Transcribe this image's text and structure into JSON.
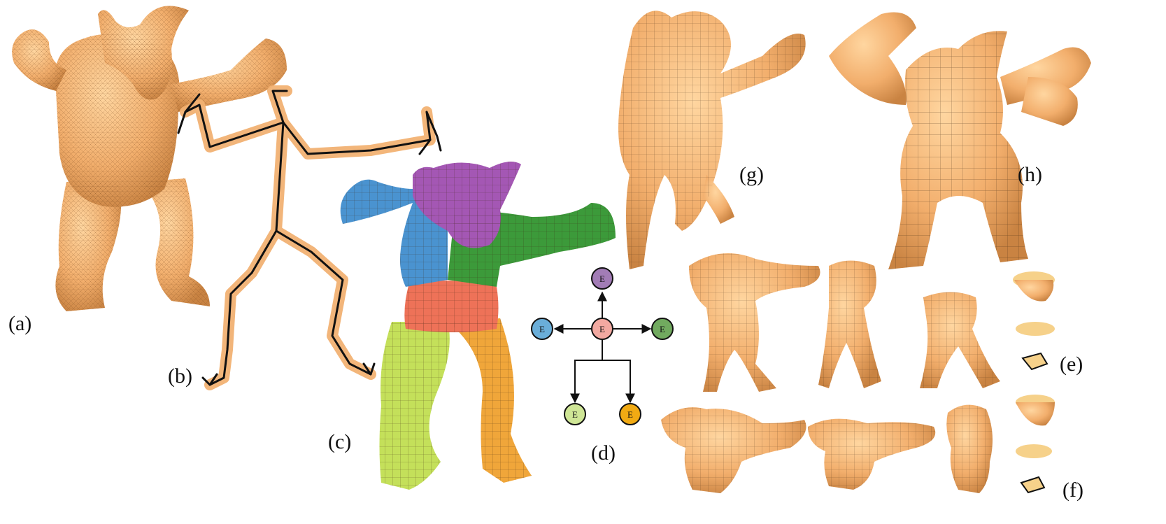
{
  "figure": {
    "panels": [
      {
        "id": "a",
        "label": "(a)",
        "content": "input triangle mesh"
      },
      {
        "id": "b",
        "label": "(b)",
        "content": "curve skeleton"
      },
      {
        "id": "c",
        "label": "(c)",
        "content": "segmented quad mesh"
      },
      {
        "id": "d",
        "label": "(d)",
        "content": "segment graph"
      },
      {
        "id": "e",
        "label": "(e)",
        "content": "decomposition pieces"
      },
      {
        "id": "f",
        "label": "(f)",
        "content": "decomposition pieces"
      },
      {
        "id": "g",
        "label": "(g)",
        "content": "edited quad mesh"
      },
      {
        "id": "h",
        "label": "(h)",
        "content": "edited quad mesh"
      }
    ],
    "graph": {
      "node_text": "E",
      "nodes": [
        {
          "id": "head",
          "color": "#a27cb6"
        },
        {
          "id": "left-arm",
          "color": "#6aaed9"
        },
        {
          "id": "torso",
          "color": "#f3a9a1"
        },
        {
          "id": "right-arm",
          "color": "#71aa5f"
        },
        {
          "id": "left-leg",
          "color": "#cfe696"
        },
        {
          "id": "right-leg",
          "color": "#f1aa13"
        }
      ]
    },
    "colors": {
      "mesh": "#f2b273",
      "mesh_dark": "#d9914f",
      "wire": "#5a3a1e",
      "skeleton": "#111111",
      "seg_head": "#a457b4",
      "seg_left_arm": "#4a93d0",
      "seg_right_arm": "#3c9a3a",
      "seg_torso": "#ee7258",
      "seg_left_leg": "#c4e05a",
      "seg_right_leg": "#f0a63a"
    }
  }
}
